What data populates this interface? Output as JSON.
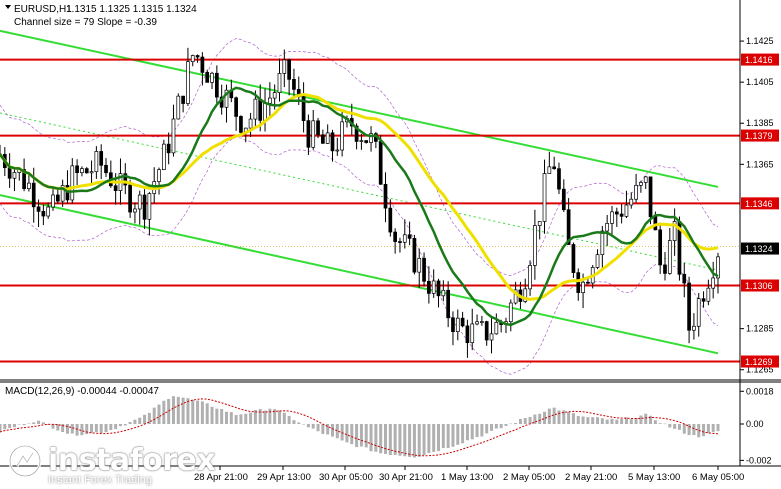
{
  "header": {
    "symbol": "EURUSD,H1",
    "ohlc": "1.1315 1.1325 1.1315 1.1324",
    "channel_note": "Channel size = 79 Slope = -0.39"
  },
  "macd": {
    "label": "MACD(12,26,9) -0.00044 -0.00047",
    "yticks": [
      "0.0018",
      "0.00",
      "-0.002"
    ]
  },
  "brand": {
    "name": "instaforex",
    "sub": "Instant Forex Trading"
  },
  "colors": {
    "background": "#ffffff",
    "bull": "#000000",
    "bear": "#000000",
    "ma_fast": "#1a7a1a",
    "ma_slow": "#f0e000",
    "channel": "#33dd33",
    "levels": "#dd0000",
    "bands": "#b060d0",
    "macd_hist": "#b0b0b0",
    "macd_signal": "#cc0000"
  },
  "chart_data": {
    "type": "candlestick",
    "title": "EURUSD,H1",
    "ylim": [
      1.126,
      1.1445
    ],
    "yticks": [
      1.1425,
      1.1405,
      1.1385,
      1.1365,
      1.1285,
      1.1265
    ],
    "xtick_labels": [
      "28 Apr 21:00",
      "29 Apr 13:00",
      "30 Apr 05:00",
      "30 Apr 21:00",
      "1 May 13:00",
      "2 May 05:00",
      "2 May 21:00",
      "5 May 13:00",
      "6 May 05:00"
    ],
    "levels": [
      {
        "label": "1.1416",
        "value": 1.1416
      },
      {
        "label": "1.1379",
        "value": 1.1379
      },
      {
        "label": "1.1346",
        "value": 1.1346
      },
      {
        "label": "1.1306",
        "value": 1.1306
      },
      {
        "label": "1.1269",
        "value": 1.1269
      }
    ],
    "current_price": {
      "label": "1.1324",
      "value": 1.1324
    },
    "channel_upper": {
      "from": [
        0,
        1.143
      ],
      "to": [
        1,
        1.1354
      ]
    },
    "channel_lower": {
      "from": [
        0,
        1.135
      ],
      "to": [
        1,
        1.1273
      ]
    },
    "price_path": [
      [
        0.0,
        1.137
      ],
      [
        0.04,
        1.1355
      ],
      [
        0.07,
        1.134
      ],
      [
        0.1,
        1.1358
      ],
      [
        0.14,
        1.1365
      ],
      [
        0.17,
        1.1352
      ],
      [
        0.2,
        1.1345
      ],
      [
        0.23,
        1.137
      ],
      [
        0.27,
        1.142
      ],
      [
        0.3,
        1.1405
      ],
      [
        0.34,
        1.1385
      ],
      [
        0.37,
        1.1395
      ],
      [
        0.4,
        1.141
      ],
      [
        0.43,
        1.138
      ],
      [
        0.46,
        1.1372
      ],
      [
        0.49,
        1.1385
      ],
      [
        0.52,
        1.1375
      ],
      [
        0.55,
        1.133
      ],
      [
        0.58,
        1.1318
      ],
      [
        0.61,
        1.13
      ],
      [
        0.64,
        1.1285
      ],
      [
        0.67,
        1.1282
      ],
      [
        0.7,
        1.1288
      ],
      [
        0.73,
        1.131
      ],
      [
        0.75,
        1.134
      ],
      [
        0.77,
        1.137
      ],
      [
        0.79,
        1.1325
      ],
      [
        0.81,
        1.1305
      ],
      [
        0.84,
        1.1335
      ],
      [
        0.87,
        1.1345
      ],
      [
        0.9,
        1.1355
      ],
      [
        0.92,
        1.1315
      ],
      [
        0.94,
        1.133
      ],
      [
        0.96,
        1.1285
      ],
      [
        0.98,
        1.1305
      ],
      [
        1.0,
        1.1324
      ]
    ],
    "macd_ylim": [
      -0.0022,
      0.0022
    ],
    "macd_path": [
      [
        0.0,
        -0.0004
      ],
      [
        0.05,
        0.0002
      ],
      [
        0.1,
        -0.0006
      ],
      [
        0.15,
        -0.0004
      ],
      [
        0.2,
        0.0004
      ],
      [
        0.24,
        0.0016
      ],
      [
        0.28,
        0.0012
      ],
      [
        0.33,
        0.0005
      ],
      [
        0.38,
        0.0009
      ],
      [
        0.43,
        -0.0002
      ],
      [
        0.48,
        -0.001
      ],
      [
        0.53,
        -0.0016
      ],
      [
        0.58,
        -0.0018
      ],
      [
        0.63,
        -0.0012
      ],
      [
        0.68,
        -0.0005
      ],
      [
        0.73,
        0.0003
      ],
      [
        0.77,
        0.0009
      ],
      [
        0.81,
        0.0004
      ],
      [
        0.86,
        0.0002
      ],
      [
        0.9,
        0.0005
      ],
      [
        0.94,
        -0.0003
      ],
      [
        0.97,
        -0.0007
      ],
      [
        1.0,
        -0.00044
      ]
    ]
  }
}
